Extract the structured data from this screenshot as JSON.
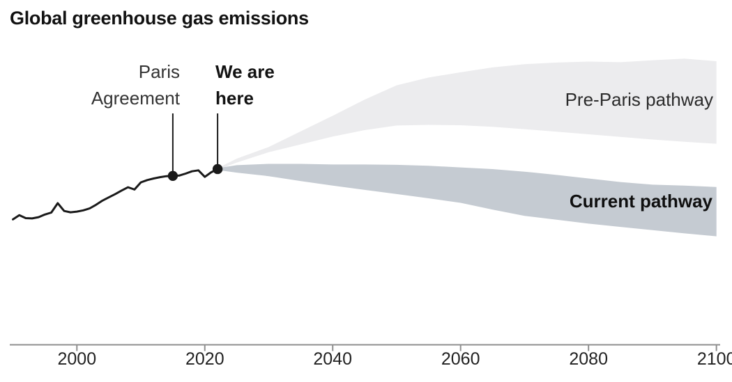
{
  "title": "Global greenhouse gas emissions",
  "colors": {
    "background": "#ffffff",
    "historical_line": "#1a1a1a",
    "pre_paris_band": "#ececee",
    "current_band": "#c5cbd2",
    "axis": "#8f8f8f",
    "title_text": "#121212",
    "annotation_text": "#333333",
    "tick_text": "#222222"
  },
  "chart_data": {
    "type": "line",
    "title": "Global greenhouse gas emissions",
    "subtitle": "",
    "legend_position": "labels-inside-bands",
    "grid": false,
    "x_axis": {
      "ticks": [
        2000,
        2020,
        2040,
        2060,
        2080,
        2100
      ],
      "range": [
        1990,
        2100
      ]
    },
    "y_axis": {
      "shown": false,
      "note": "no y-axis shown; values are relative estimates of annual emissions",
      "ylim": [
        0,
        105
      ]
    },
    "historical": {
      "name": "Historical emissions",
      "years": [
        1990,
        1991,
        1992,
        1993,
        1994,
        1995,
        1996,
        1997,
        1998,
        1999,
        2000,
        2001,
        2002,
        2003,
        2004,
        2005,
        2006,
        2007,
        2008,
        2009,
        2010,
        2011,
        2012,
        2013,
        2014,
        2015,
        2016,
        2017,
        2018,
        2019,
        2020,
        2021,
        2022
      ],
      "values": [
        38.5,
        39.8,
        38.9,
        38.8,
        39.2,
        40.0,
        40.6,
        43.5,
        41.1,
        40.7,
        40.9,
        41.3,
        41.9,
        43.0,
        44.3,
        45.3,
        46.3,
        47.4,
        48.4,
        47.7,
        49.9,
        50.6,
        51.1,
        51.5,
        51.8,
        51.9,
        52.0,
        52.6,
        53.3,
        53.6,
        51.6,
        53.0,
        54.0
      ]
    },
    "bands": [
      {
        "name": "Pre-Paris pathway",
        "color": "#ececee",
        "label_bold": false,
        "years": [
          2022,
          2025,
          2030,
          2035,
          2040,
          2045,
          2050,
          2055,
          2060,
          2065,
          2070,
          2075,
          2080,
          2085,
          2090,
          2095,
          2100
        ],
        "hi": [
          54.3,
          57.2,
          60.8,
          65.6,
          70.4,
          75.4,
          79.8,
          82.2,
          83.8,
          85.3,
          86.3,
          86.8,
          87.1,
          86.9,
          87.5,
          88.0,
          87.2
        ],
        "lo": [
          53.8,
          56.0,
          59.2,
          61.6,
          64.0,
          66.0,
          67.4,
          67.6,
          67.5,
          67.0,
          66.3,
          65.5,
          64.7,
          63.9,
          63.1,
          62.4,
          61.8
        ]
      },
      {
        "name": "Current pathway",
        "color": "#c5cbd2",
        "label_bold": true,
        "years": [
          2022,
          2025,
          2030,
          2035,
          2040,
          2045,
          2050,
          2055,
          2060,
          2065,
          2070,
          2075,
          2080,
          2085,
          2090,
          2095,
          2100
        ],
        "hi": [
          54.3,
          55.2,
          55.6,
          55.6,
          55.4,
          55.4,
          55.3,
          55.0,
          54.5,
          54.0,
          53.2,
          52.2,
          51.1,
          50.0,
          49.2,
          48.9,
          48.5
        ],
        "lo": [
          53.7,
          52.9,
          51.8,
          50.3,
          48.9,
          47.6,
          46.3,
          45.0,
          43.6,
          41.5,
          39.6,
          38.4,
          37.2,
          36.2,
          35.2,
          34.2,
          33.3
        ]
      }
    ],
    "annotations": [
      {
        "id": "paris-agreement",
        "label": "Paris Agreement",
        "lines": [
          "Paris",
          "Agreement"
        ],
        "year": 2015,
        "value": 51.9,
        "bold": false
      },
      {
        "id": "we-are-here",
        "label": "We are here",
        "lines": [
          "We are",
          "here"
        ],
        "year": 2022,
        "value": 54.0,
        "bold": true
      }
    ]
  }
}
